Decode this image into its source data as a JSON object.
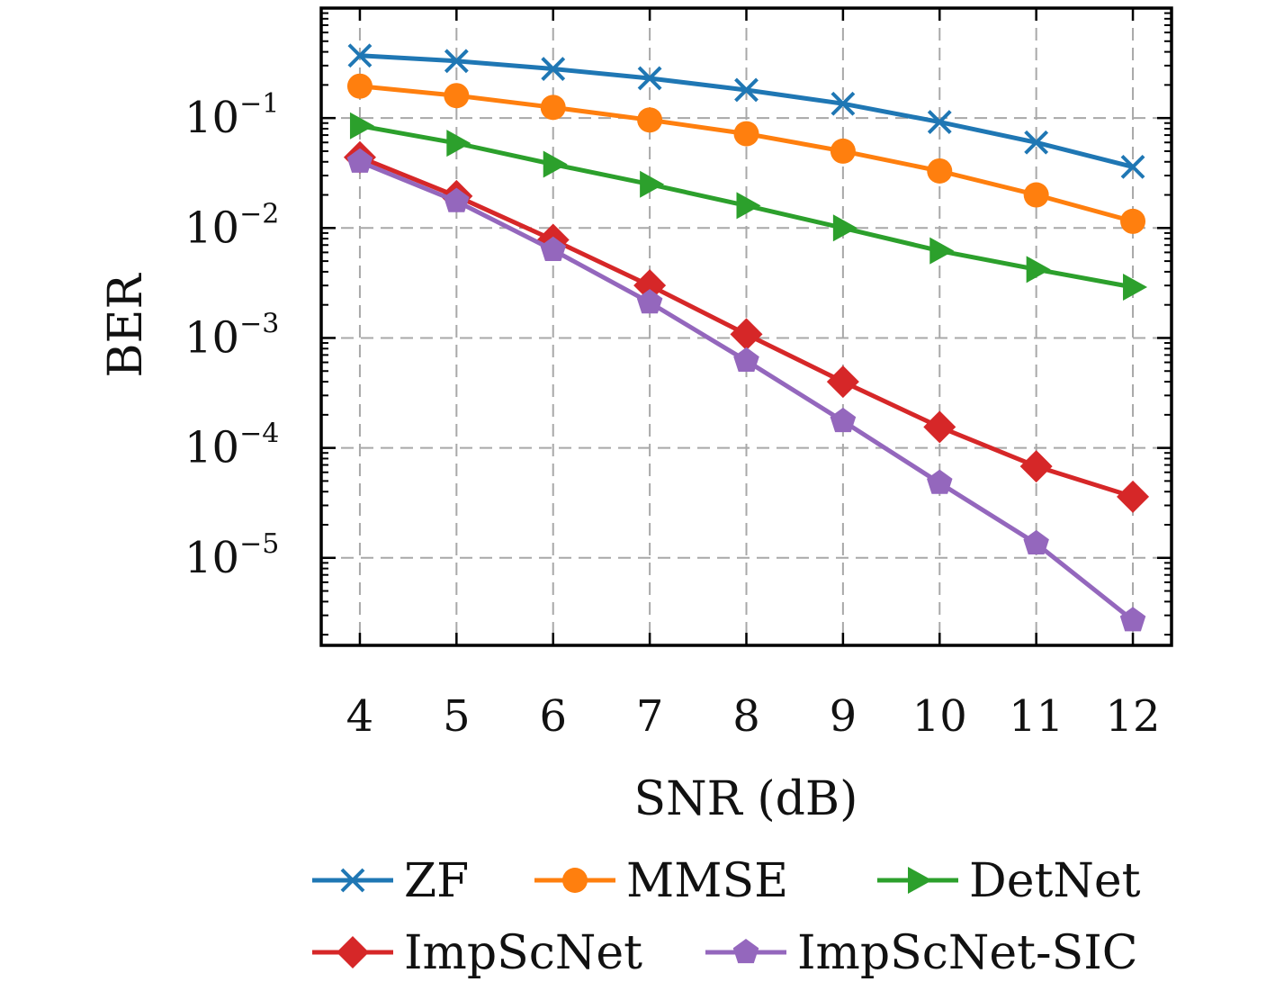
{
  "chart_data": {
    "type": "line",
    "xlabel": "SNR (dB)",
    "ylabel": "BER",
    "yscale": "log",
    "xlim": [
      3.6,
      12.4
    ],
    "ylim": [
      1.6e-06,
      1.0
    ],
    "x": [
      4,
      5,
      6,
      7,
      8,
      9,
      10,
      11,
      12
    ],
    "xticks": [
      "4",
      "5",
      "6",
      "7",
      "8",
      "9",
      "10",
      "11",
      "12"
    ],
    "yticks": [
      {
        "base": "10",
        "exp": "−1",
        "value": 0.1
      },
      {
        "base": "10",
        "exp": "−2",
        "value": 0.01
      },
      {
        "base": "10",
        "exp": "−3",
        "value": 0.001
      },
      {
        "base": "10",
        "exp": "−4",
        "value": 0.0001
      },
      {
        "base": "10",
        "exp": "−5",
        "value": 1e-05
      }
    ],
    "grid": true,
    "legend_position": "bottom",
    "series": [
      {
        "name": "ZF",
        "color": "#1f77b4",
        "marker": "x",
        "values": [
          0.37,
          0.33,
          0.28,
          0.23,
          0.18,
          0.135,
          0.092,
          0.06,
          0.036
        ]
      },
      {
        "name": "MMSE",
        "color": "#ff7f0e",
        "marker": "circle",
        "values": [
          0.195,
          0.16,
          0.125,
          0.096,
          0.072,
          0.05,
          0.033,
          0.02,
          0.0115
        ]
      },
      {
        "name": "DetNet",
        "color": "#2ca02c",
        "marker": "triangle-right",
        "values": [
          0.085,
          0.059,
          0.038,
          0.025,
          0.016,
          0.01,
          0.0062,
          0.0042,
          0.0029
        ]
      },
      {
        "name": "ImpScNet",
        "color": "#d62728",
        "marker": "diamond",
        "values": [
          0.044,
          0.0195,
          0.0078,
          0.003,
          0.00108,
          0.0004,
          0.000155,
          6.8e-05,
          3.6e-05
        ]
      },
      {
        "name": "ImpScNet-SIC",
        "color": "#9467bd",
        "marker": "pentagon",
        "values": [
          0.04,
          0.0175,
          0.0063,
          0.0021,
          0.00062,
          0.000175,
          4.8e-05,
          1.35e-05,
          2.7e-06
        ]
      }
    ]
  }
}
